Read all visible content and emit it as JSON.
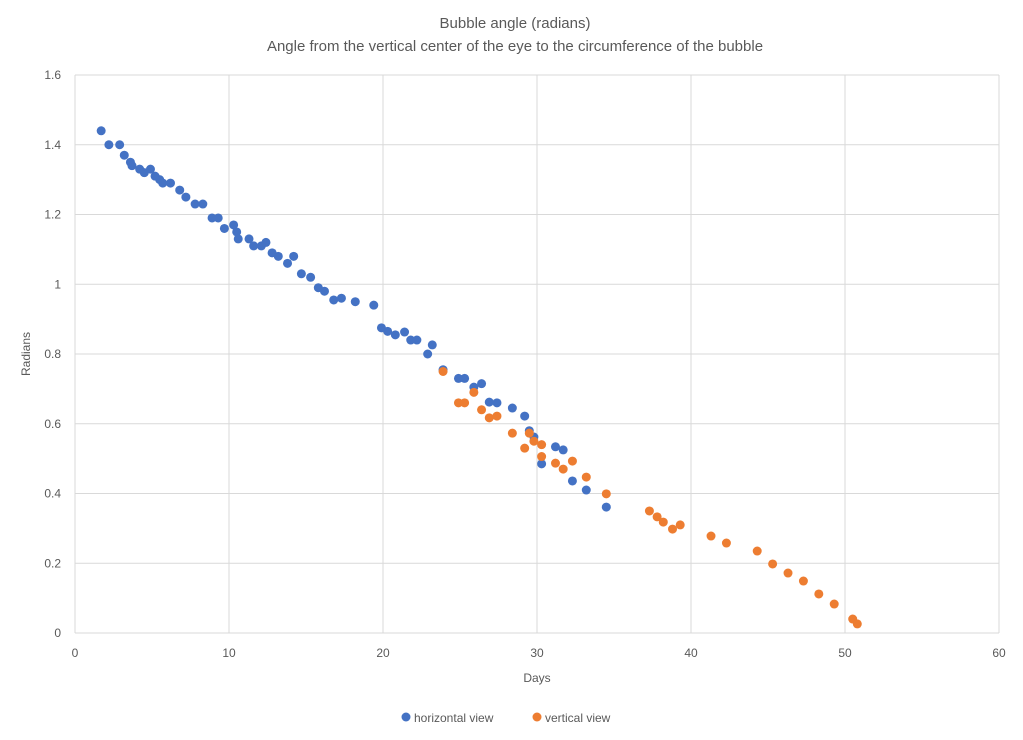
{
  "chart_data": {
    "type": "scatter",
    "title": "Bubble angle (radians)",
    "subtitle": "Angle from the vertical center of the eye to the circumference of the bubble",
    "xlabel": "Days",
    "ylabel": "Radians",
    "xlim": [
      0,
      60
    ],
    "ylim": [
      0,
      1.6
    ],
    "xticks": [
      0,
      10,
      20,
      30,
      40,
      50,
      60
    ],
    "yticks": [
      0,
      0.2,
      0.4,
      0.6,
      0.8,
      1,
      1.2,
      1.4,
      1.6
    ],
    "ytick_labels": [
      "0",
      "0.2",
      "0.4",
      "0.6",
      "0.8",
      "1",
      "1.2",
      "1.4",
      "1.6"
    ],
    "grid": true,
    "legend": "bottom",
    "series": [
      {
        "name": "horizontal view",
        "color": "#4472C4",
        "x": [
          1.7,
          2.2,
          2.9,
          3.2,
          3.6,
          3.7,
          4.2,
          4.5,
          4.9,
          5.2,
          5.5,
          5.7,
          6.2,
          6.8,
          7.2,
          7.8,
          8.3,
          8.9,
          9.3,
          9.7,
          10.3,
          10.5,
          10.6,
          11.3,
          11.6,
          12.1,
          12.4,
          12.8,
          13.2,
          13.8,
          14.2,
          14.7,
          15.3,
          15.8,
          16.2,
          16.8,
          17.3,
          18.2,
          19.4,
          19.9,
          20.3,
          20.8,
          21.4,
          21.8,
          22.2,
          22.9,
          23.2,
          23.9,
          24.9,
          25.3,
          25.9,
          26.4,
          26.9,
          27.4,
          28.4,
          29.2,
          29.5,
          29.8,
          30.3,
          31.2,
          31.7,
          32.3,
          33.2,
          34.5
        ],
        "y": [
          1.44,
          1.4,
          1.4,
          1.37,
          1.35,
          1.34,
          1.33,
          1.32,
          1.33,
          1.31,
          1.3,
          1.29,
          1.29,
          1.27,
          1.25,
          1.23,
          1.23,
          1.19,
          1.19,
          1.16,
          1.17,
          1.15,
          1.13,
          1.13,
          1.11,
          1.11,
          1.12,
          1.09,
          1.08,
          1.06,
          1.08,
          1.03,
          1.02,
          0.99,
          0.98,
          0.955,
          0.96,
          0.95,
          0.94,
          0.875,
          0.865,
          0.855,
          0.863,
          0.84,
          0.84,
          0.8,
          0.826,
          0.755,
          0.73,
          0.73,
          0.705,
          0.715,
          0.662,
          0.66,
          0.645,
          0.622,
          0.58,
          0.562,
          0.485,
          0.534,
          0.525,
          0.436,
          0.41,
          0.361
        ]
      },
      {
        "name": "vertical view",
        "color": "#ED7D31",
        "x": [
          23.9,
          24.9,
          25.3,
          25.9,
          26.4,
          26.9,
          27.4,
          28.4,
          29.2,
          29.5,
          29.8,
          30.3,
          30.3,
          31.2,
          31.7,
          32.3,
          33.2,
          34.5,
          37.3,
          37.8,
          38.2,
          38.8,
          39.3,
          41.3,
          42.3,
          44.3,
          45.3,
          46.3,
          47.3,
          48.3,
          49.3,
          50.5,
          50.8
        ],
        "y": [
          0.75,
          0.66,
          0.66,
          0.69,
          0.64,
          0.617,
          0.622,
          0.573,
          0.53,
          0.573,
          0.55,
          0.54,
          0.506,
          0.487,
          0.47,
          0.493,
          0.447,
          0.399,
          0.35,
          0.333,
          0.318,
          0.298,
          0.31,
          0.278,
          0.258,
          0.235,
          0.198,
          0.172,
          0.149,
          0.112,
          0.083,
          0.04,
          0.026
        ]
      }
    ]
  }
}
